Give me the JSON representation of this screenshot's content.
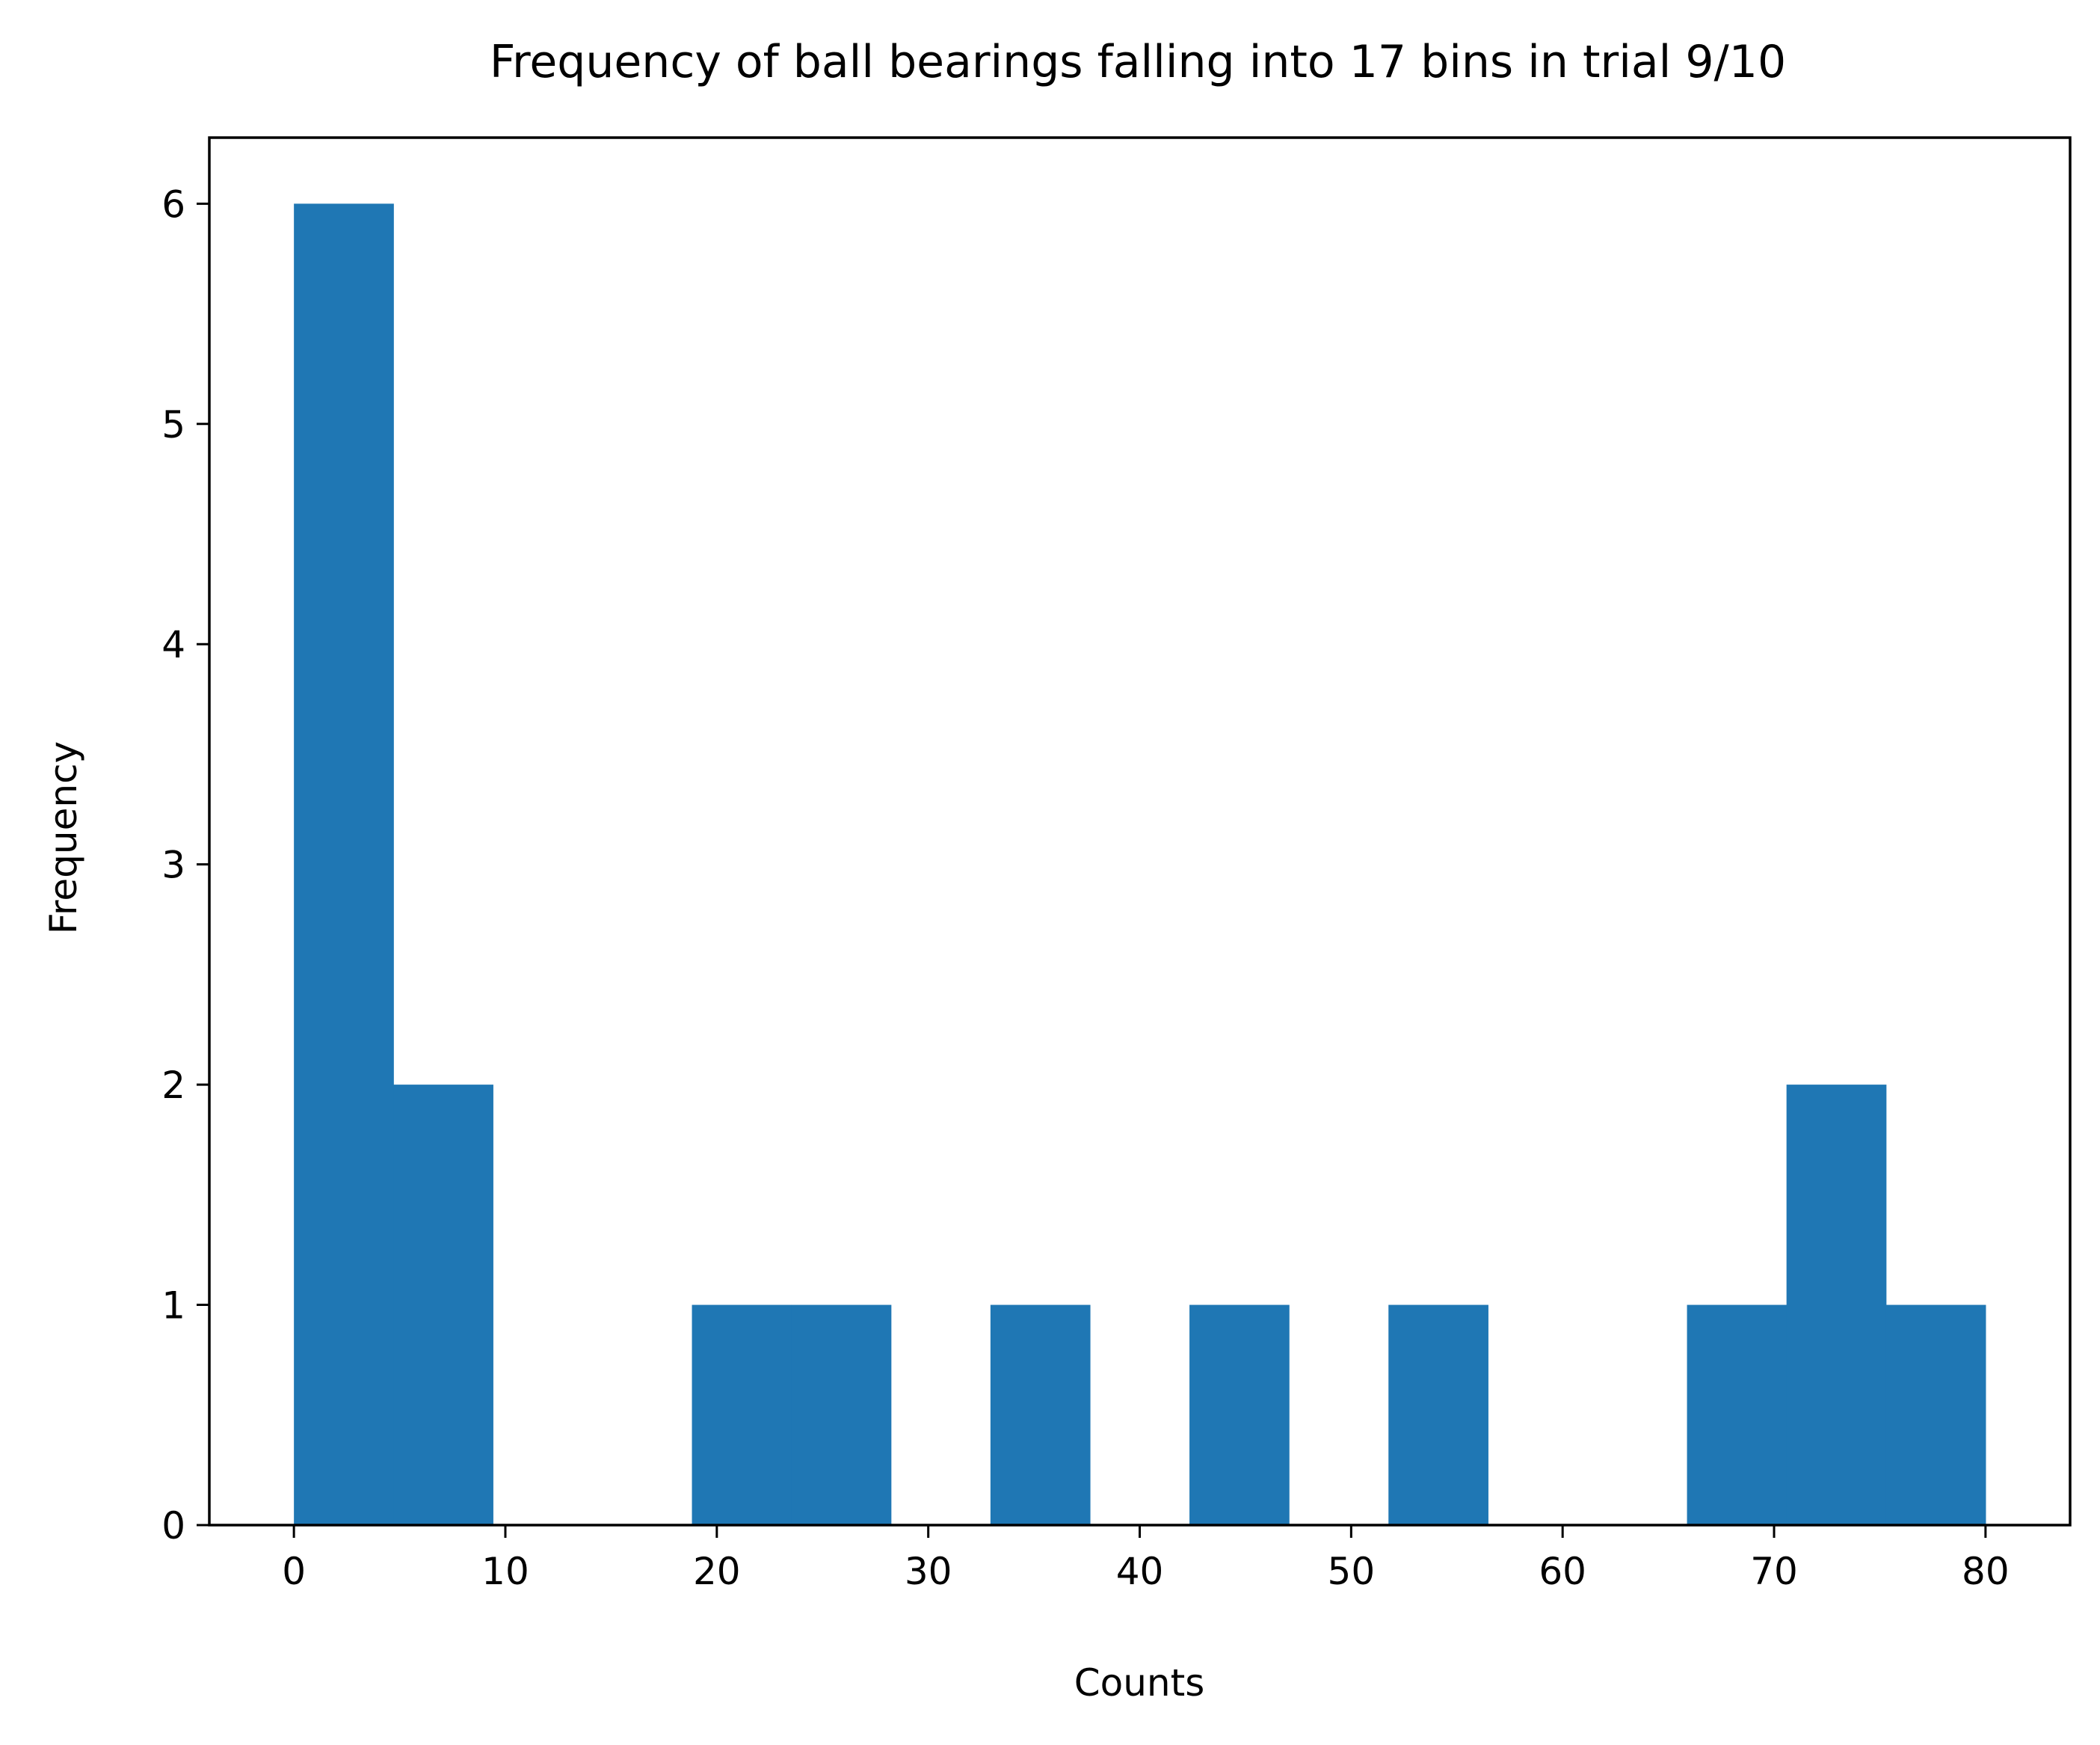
{
  "chart_data": {
    "type": "bar",
    "title": "Frequency of ball bearings falling into 17 bins in trial 9/10",
    "xlabel": "Counts",
    "ylabel": "Frequency",
    "bin_range": [
      0,
      80
    ],
    "bin_count": 17,
    "values": [
      6,
      2,
      0,
      0,
      1,
      1,
      0,
      1,
      0,
      1,
      0,
      1,
      0,
      0,
      1,
      2,
      1
    ],
    "xlim": [
      -4,
      84
    ],
    "ylim": [
      0,
      6.3
    ],
    "xticks": [
      0,
      10,
      20,
      30,
      40,
      50,
      60,
      70,
      80
    ],
    "yticks": [
      0,
      1,
      2,
      3,
      4,
      5,
      6
    ],
    "bar_color": "#1f77b4",
    "grid": false,
    "legend": "none"
  }
}
